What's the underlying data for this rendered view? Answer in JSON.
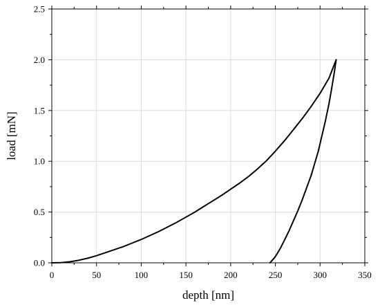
{
  "chart_data": {
    "type": "line",
    "xlabel": "depth [nm]",
    "ylabel": "load [mN]",
    "xlim": [
      0,
      350
    ],
    "ylim": [
      0.0,
      2.5
    ],
    "x_ticks": [
      "0",
      "50",
      "100",
      "150",
      "200",
      "250",
      "300",
      "350"
    ],
    "y_ticks": [
      "0.0",
      "0.5",
      "1.0",
      "1.5",
      "2.0",
      "2.5"
    ],
    "grid": true,
    "minor_ticks": true,
    "colors": {
      "line": "#000000",
      "grid": "#dcdcdc"
    },
    "series": [
      {
        "x": [
          0,
          10,
          20,
          30,
          40,
          50,
          60,
          70,
          80,
          90,
          100,
          110,
          120,
          130,
          140,
          150,
          160,
          170,
          180,
          190,
          200,
          210,
          220,
          230,
          240,
          250,
          260,
          270,
          280,
          290,
          300,
          310,
          318
        ],
        "y": [
          0.0,
          0.002,
          0.01,
          0.025,
          0.045,
          0.07,
          0.1,
          0.13,
          0.16,
          0.195,
          0.23,
          0.27,
          0.31,
          0.355,
          0.4,
          0.45,
          0.5,
          0.555,
          0.61,
          0.665,
          0.725,
          0.785,
          0.85,
          0.925,
          1.005,
          1.1,
          1.2,
          1.31,
          1.42,
          1.54,
          1.67,
          1.82,
          2.0
        ]
      },
      {
        "x": [
          318,
          316,
          313,
          310,
          306,
          302,
          298,
          294,
          290,
          285,
          280,
          275,
          270,
          265,
          260,
          256,
          252,
          249,
          246,
          244
        ],
        "y": [
          2.0,
          1.88,
          1.72,
          1.57,
          1.4,
          1.25,
          1.1,
          0.98,
          0.86,
          0.74,
          0.62,
          0.51,
          0.41,
          0.31,
          0.22,
          0.15,
          0.09,
          0.05,
          0.02,
          0.0
        ]
      }
    ]
  }
}
